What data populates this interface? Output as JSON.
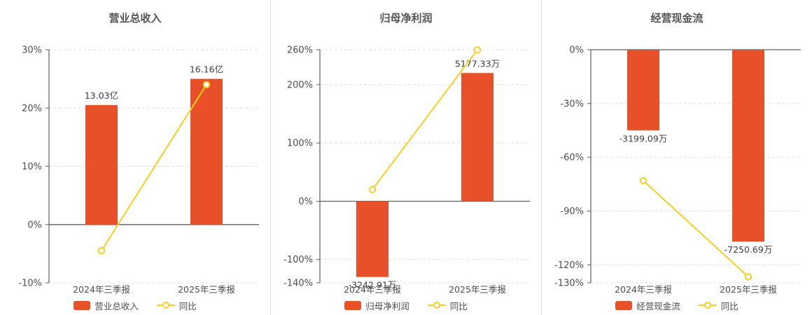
{
  "colors": {
    "bar": "#e8502a",
    "line": "#f8ce21",
    "text": "#4d4d4d",
    "label": "#3c3c3c",
    "axis_strong": "#5f5f5f",
    "grid": "#e0e0e0",
    "title": "#555555",
    "divider": "#dddddd",
    "background": "#ffffff"
  },
  "chart_data": [
    {
      "type": "bar",
      "title": "营业总收入",
      "categories": [
        "2024年三季报",
        "2025年三季报"
      ],
      "axis": {
        "min": -10,
        "max": 30,
        "unit": "%",
        "ticks": [
          {
            "value": 30,
            "label": "30%"
          },
          {
            "value": 20,
            "label": "20%"
          },
          {
            "value": 10,
            "label": "10%"
          },
          {
            "value": 0,
            "label": "0%"
          },
          {
            "value": -10,
            "label": "-10%"
          }
        ]
      },
      "grid": "dashed",
      "legend_position": "bottom",
      "bar": {
        "name": "营业总收入",
        "labels": [
          "13.03亿",
          "16.16亿"
        ],
        "plot_values": [
          20.5,
          25.0
        ]
      },
      "line": {
        "name": "同比",
        "values": [
          -4.5,
          24.0
        ]
      }
    },
    {
      "type": "bar",
      "title": "归母净利润",
      "categories": [
        "2024年三季报",
        "2025年三季报"
      ],
      "axis": {
        "min": -140,
        "max": 260,
        "unit": "%",
        "ticks": [
          {
            "value": 260,
            "label": "260%"
          },
          {
            "value": 200,
            "label": "200%"
          },
          {
            "value": 100,
            "label": "100%"
          },
          {
            "value": 0,
            "label": "0%"
          },
          {
            "value": -100,
            "label": "-100%"
          },
          {
            "value": -140,
            "label": "-140%"
          }
        ]
      },
      "grid": "dashed",
      "legend_position": "bottom",
      "bar": {
        "name": "归母净利润",
        "labels": [
          "-3242.91万",
          "5177.33万"
        ],
        "plot_values": [
          -130,
          220
        ]
      },
      "line": {
        "name": "同比",
        "values": [
          20,
          259.65
        ]
      }
    },
    {
      "type": "bar",
      "title": "经营现金流",
      "categories": [
        "2024年三季报",
        "2025年三季报"
      ],
      "axis": {
        "min": -130,
        "max": 0,
        "unit": "%",
        "ticks": [
          {
            "value": 0,
            "label": "0%"
          },
          {
            "value": -30,
            "label": "-30%"
          },
          {
            "value": -60,
            "label": "-60%"
          },
          {
            "value": -90,
            "label": "-90%"
          },
          {
            "value": -120,
            "label": "-120%"
          },
          {
            "value": -130,
            "label": "-130%"
          }
        ]
      },
      "grid": "dashed",
      "legend_position": "bottom",
      "bar": {
        "name": "经营现金流",
        "labels": [
          "-3199.09万",
          "-7250.69万"
        ],
        "plot_values": [
          -45,
          -107
        ]
      },
      "line": {
        "name": "同比",
        "values": [
          -73,
          -126.65
        ]
      }
    }
  ]
}
